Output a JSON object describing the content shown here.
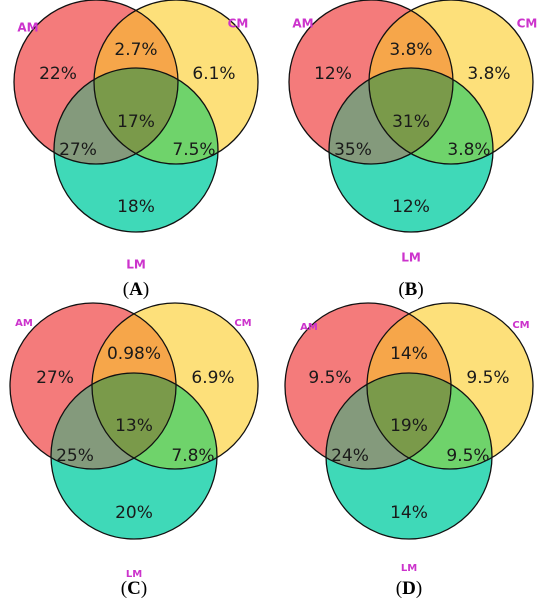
{
  "colors": {
    "am": "#f47b7b",
    "cm": "#fde07a",
    "lm": "#3fd9b8",
    "label": "#cc33cc"
  },
  "panels": [
    {
      "letter": "A",
      "caption_open": "(",
      "caption_close": ")",
      "set_labels": {
        "am": "AM",
        "cm": "CM",
        "lm": "LM"
      },
      "regions": {
        "am_only": "22%",
        "am_cm": "2.7%",
        "cm_only": "6.1%",
        "am_lm": "27%",
        "all": "17%",
        "cm_lm": "7.5%",
        "lm_only": "18%"
      }
    },
    {
      "letter": "B",
      "caption_open": "(",
      "caption_close": ")",
      "set_labels": {
        "am": "AM",
        "cm": "CM",
        "lm": "LM"
      },
      "regions": {
        "am_only": "12%",
        "am_cm": "3.8%",
        "cm_only": "3.8%",
        "am_lm": "35%",
        "all": "31%",
        "cm_lm": "3.8%",
        "lm_only": "12%"
      }
    },
    {
      "letter": "C",
      "caption_open": "(",
      "caption_close": ")",
      "set_labels": {
        "am": "AM",
        "cm": "CM",
        "lm": "LM"
      },
      "regions": {
        "am_only": "27%",
        "am_cm": "0.98%",
        "cm_only": "6.9%",
        "am_lm": "25%",
        "all": "13%",
        "cm_lm": "7.8%",
        "lm_only": "20%"
      }
    },
    {
      "letter": "D",
      "caption_open": "(",
      "caption_close": ")",
      "set_labels": {
        "am": "AM",
        "cm": "CM",
        "lm": "LM"
      },
      "regions": {
        "am_only": "9.5%",
        "am_cm": "14%",
        "cm_only": "9.5%",
        "am_lm": "24%",
        "all": "19%",
        "cm_lm": "9.5%",
        "lm_only": "14%"
      }
    }
  ]
}
